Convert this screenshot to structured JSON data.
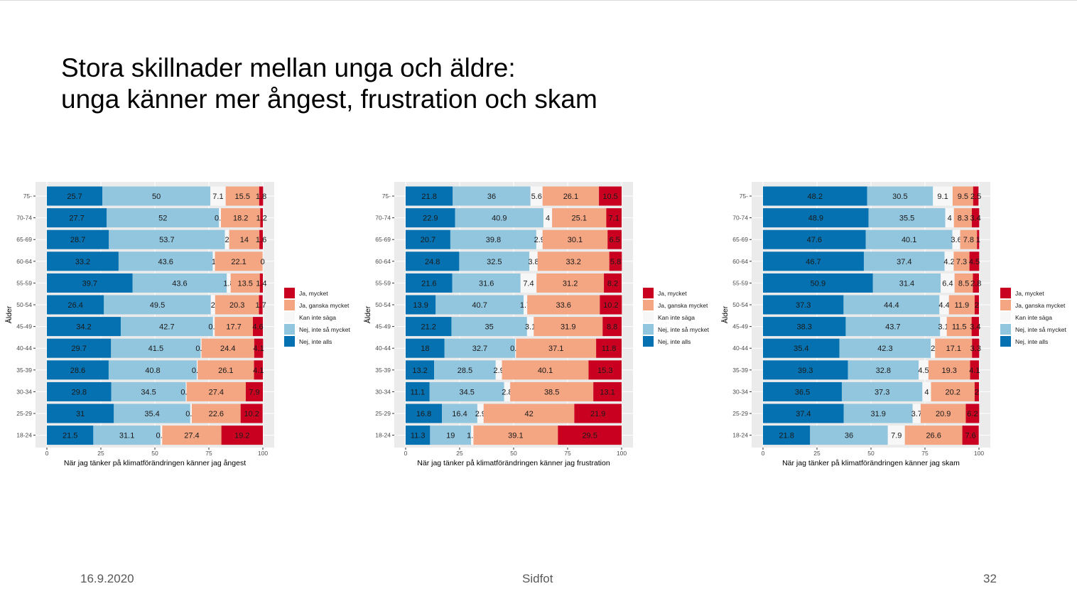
{
  "slide": {
    "title_line1": "Stora skillnader mellan unga och äldre:",
    "title_line2": "unga känner mer ångest, frustration och skam"
  },
  "footer": {
    "date": "16.9.2020",
    "center": "Sidfot",
    "page": "32"
  },
  "colors": {
    "ja_mycket": "#ca0020",
    "ja_ganska": "#f4a582",
    "kan_inte": "#f7f7f7",
    "nej_inte_sa": "#92c5de",
    "nej_inte_alls": "#0571b0",
    "panel_bg": "#ebebeb"
  },
  "chart_data": [
    {
      "type": "bar",
      "orientation": "horizontal",
      "stacked": true,
      "xlabel": "När jag tänker på klimatförändringen känner jag ångest",
      "ylabel": "Ålder",
      "xlim": [
        0,
        100
      ],
      "xticks": [
        0,
        25,
        50,
        75,
        100
      ],
      "legend_position": "right",
      "categories": [
        "75-",
        "70-74",
        "65-69",
        "60-64",
        "55-59",
        "50-54",
        "45-49",
        "40-44",
        "35-39",
        "30-34",
        "25-29",
        "18-24"
      ],
      "series": [
        {
          "name": "Nej, inte alls",
          "color_key": "nej_inte_alls",
          "values": [
            25.7,
            27.7,
            28.7,
            33.2,
            39.7,
            26.4,
            34.2,
            29.7,
            28.6,
            29.8,
            31,
            21.5
          ]
        },
        {
          "name": "Nej, inte så mycket",
          "color_key": "nej_inte_sa",
          "values": [
            50,
            52,
            53.7,
            43.6,
            43.6,
            49.5,
            42.7,
            41.5,
            40.8,
            34.5,
            35.4,
            31.1
          ]
        },
        {
          "name": "Kan inte säga",
          "color_key": "kan_inte",
          "values": [
            7.1,
            0.9,
            2,
            1,
            1.8,
            2,
            0.8,
            0.4,
            0.4,
            0.4,
            0.7,
            0.8
          ]
        },
        {
          "name": "Ja, ganska mycket",
          "color_key": "ja_ganska",
          "values": [
            15.5,
            18.2,
            14,
            22.1,
            13.5,
            20.3,
            17.7,
            24.4,
            26.1,
            27.4,
            22.6,
            27.4
          ]
        },
        {
          "name": "Ja, mycket",
          "color_key": "ja_mycket",
          "values": [
            1.8,
            1.2,
            1.6,
            0,
            1.4,
            1.7,
            4.6,
            4.1,
            4.1,
            7.9,
            10.2,
            19.2
          ]
        }
      ],
      "legend_order": [
        "Ja, mycket",
        "Ja, ganska mycket",
        "Kan inte säga",
        "Nej, inte så mycket",
        "Nej, inte alls"
      ]
    },
    {
      "type": "bar",
      "orientation": "horizontal",
      "stacked": true,
      "xlabel": "När jag tänker på klimatförändringen känner jag frustration",
      "ylabel": "Ålder",
      "xlim": [
        0,
        100
      ],
      "xticks": [
        0,
        25,
        50,
        75,
        100
      ],
      "legend_position": "right",
      "categories": [
        "75-",
        "70-74",
        "65-69",
        "60-64",
        "55-59",
        "50-54",
        "45-49",
        "40-44",
        "35-39",
        "30-34",
        "25-29",
        "18-24"
      ],
      "series": [
        {
          "name": "Nej, inte alls",
          "color_key": "nej_inte_alls",
          "values": [
            21.8,
            22.9,
            20.7,
            24.8,
            21.6,
            13.9,
            21.2,
            18,
            13.2,
            11.1,
            16.8,
            11.3
          ]
        },
        {
          "name": "Nej, inte så mycket",
          "color_key": "nej_inte_sa",
          "values": [
            36,
            40.9,
            39.8,
            32.5,
            31.6,
            40.7,
            35,
            32.7,
            28.5,
            34.5,
            16.4,
            19
          ]
        },
        {
          "name": "Kan inte säga",
          "color_key": "kan_inte",
          "values": [
            5.6,
            4,
            2.9,
            3.8,
            7.4,
            1.7,
            3.1,
            0.4,
            2.9,
            2.8,
            2.9,
            1.1
          ]
        },
        {
          "name": "Ja, ganska mycket",
          "color_key": "ja_ganska",
          "values": [
            26.1,
            25.1,
            30.1,
            33.2,
            31.2,
            33.6,
            31.9,
            37.1,
            40.1,
            38.5,
            42,
            39.1
          ]
        },
        {
          "name": "Ja, mycket",
          "color_key": "ja_mycket",
          "values": [
            10.5,
            7.1,
            6.5,
            5.8,
            8.2,
            10.2,
            8.8,
            11.8,
            15.3,
            13.1,
            21.9,
            29.5
          ]
        }
      ],
      "legend_order": [
        "Ja, mycket",
        "Ja, ganska mycket",
        "Kan inte säga",
        "Nej, inte så mycket",
        "Nej, inte alls"
      ]
    },
    {
      "type": "bar",
      "orientation": "horizontal",
      "stacked": true,
      "xlabel": "När jag tänker på klimatförändringen känner jag skam",
      "ylabel": "Ålder",
      "xlim": [
        0,
        100
      ],
      "xticks": [
        0,
        25,
        50,
        75,
        100
      ],
      "legend_position": "right",
      "categories": [
        "75-",
        "70-74",
        "65-69",
        "60-64",
        "55-59",
        "50-54",
        "45-49",
        "40-44",
        "35-39",
        "30-34",
        "25-29",
        "18-24"
      ],
      "series": [
        {
          "name": "Nej, inte alls",
          "color_key": "nej_inte_alls",
          "values": [
            48.2,
            48.9,
            47.6,
            46.7,
            50.9,
            37.3,
            38.3,
            35.4,
            39.3,
            36.5,
            37.4,
            21.8
          ]
        },
        {
          "name": "Nej, inte så mycket",
          "color_key": "nej_inte_sa",
          "values": [
            30.5,
            35.5,
            40.1,
            37.4,
            31.4,
            44.4,
            43.7,
            42.3,
            32.8,
            37.3,
            31.9,
            36
          ]
        },
        {
          "name": "Kan inte säga",
          "color_key": "kan_inte",
          "values": [
            9.1,
            4,
            3.6,
            4.2,
            6.4,
            4.4,
            3.1,
            2,
            4.5,
            4,
            3.7,
            7.9
          ]
        },
        {
          "name": "Ja, ganska mycket",
          "color_key": "ja_ganska",
          "values": [
            9.5,
            8.3,
            7.8,
            7.3,
            8.5,
            11.9,
            11.5,
            17.1,
            19.3,
            20.2,
            20.9,
            26.6
          ]
        },
        {
          "name": "Ja, mycket",
          "color_key": "ja_mycket",
          "values": [
            2.5,
            3.4,
            1,
            4.5,
            2.8,
            2,
            3.4,
            3.3,
            4.1,
            2,
            6.2,
            7.6
          ]
        }
      ],
      "legend_order": [
        "Ja, mycket",
        "Ja, ganska mycket",
        "Kan inte säga",
        "Nej, inte så mycket",
        "Nej, inte alls"
      ]
    }
  ]
}
